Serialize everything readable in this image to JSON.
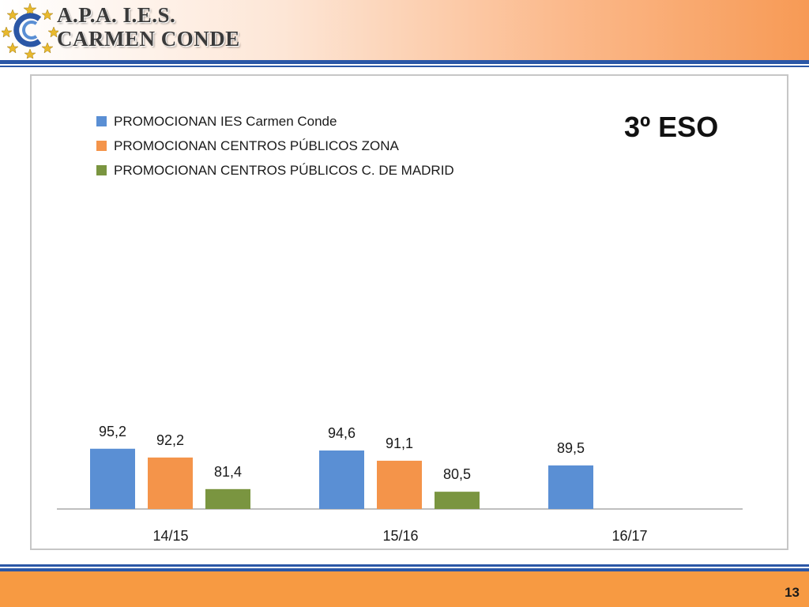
{
  "header": {
    "line1": "A.P.A.  I.E.S.",
    "line2": "CARMEN CONDE",
    "logo_icon": "cc-star-circle-logo"
  },
  "colors": {
    "series1": "#5a8fd4",
    "series2": "#f4944a",
    "series3": "#7a9540",
    "header_accent": "#2b57a6",
    "footer": "#f79a42"
  },
  "chart_data": {
    "type": "bar",
    "title": "3º ESO",
    "categories": [
      "14/15",
      "15/16",
      "16/17"
    ],
    "series": [
      {
        "name": "PROMOCIONAN IES Carmen Conde",
        "values": [
          95.2,
          94.6,
          89.5
        ],
        "labels": [
          "95,2",
          "94,6",
          "89,5"
        ]
      },
      {
        "name": "PROMOCIONAN CENTROS PÚBLICOS ZONA",
        "values": [
          92.2,
          91.1,
          null
        ],
        "labels": [
          "92,2",
          "91,1",
          ""
        ]
      },
      {
        "name": "PROMOCIONAN CENTROS PÚBLICOS C. DE MADRID",
        "values": [
          81.4,
          80.5,
          null
        ],
        "labels": [
          "81,4",
          "80,5",
          ""
        ]
      }
    ],
    "legend_position": "top-left",
    "grid": false
  },
  "footer": {
    "page_number": "13"
  }
}
